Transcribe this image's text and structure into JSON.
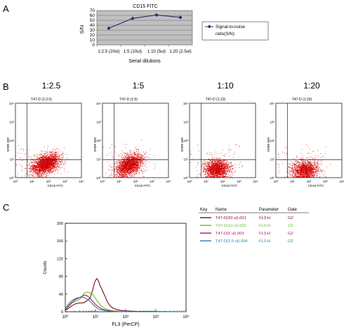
{
  "panels": {
    "a": "A",
    "b": "B",
    "c": "C"
  },
  "chart_data": [
    {
      "type": "line",
      "title": "CD15 FITC",
      "xlabel": "Serial dilutions",
      "ylabel": "S/N",
      "categories": [
        "1:2.5 (20ul)",
        "1:5 (10ul)",
        "1:10 (5ul)",
        "1:20 (2.5ul)"
      ],
      "series": [
        {
          "name": "Signal-to-noise ratio(S/N)",
          "values": [
            34,
            54,
            61,
            56
          ],
          "color": "#2b2b6b"
        }
      ],
      "ylim": [
        0,
        70
      ],
      "yticks": [
        0,
        10,
        20,
        30,
        40,
        50,
        60,
        70
      ],
      "grid": true,
      "legend": "right",
      "background": "#c0c0c0"
    },
    {
      "type": "scatter",
      "headers": [
        "1:2.5",
        "1:5",
        "1:10",
        "1:20"
      ],
      "plot_titles": [
        "T47-D (1:2.5)",
        "T47-D (1:5)",
        "T47-D (1:10)",
        "T47-D (1:20)"
      ],
      "xlabel": "CD15 FITC",
      "ylabel": "SFBR BIR",
      "log_ticks": [
        "10⁰",
        "10¹",
        "10²",
        "10³",
        "10⁴"
      ],
      "xlim": [
        1,
        10000
      ],
      "ylim": [
        1,
        10000
      ],
      "quadrant_gate": {
        "x": 5,
        "y": 9
      },
      "point_color": "#d40000",
      "populations": [
        {
          "cx": 1.8,
          "cy": 0.7,
          "sx": 0.42,
          "sy": 0.25,
          "n": 2400,
          "tilt": 0.25
        },
        {
          "cx": 1.6,
          "cy": 0.65,
          "sx": 0.4,
          "sy": 0.26,
          "n": 2200,
          "tilt": 0.3
        },
        {
          "cx": 1.65,
          "cy": 0.45,
          "sx": 0.37,
          "sy": 0.24,
          "n": 1800,
          "tilt": 0.05
        },
        {
          "cx": 1.75,
          "cy": 0.4,
          "sx": 0.4,
          "sy": 0.24,
          "n": 1600,
          "tilt": 0.05
        }
      ]
    },
    {
      "type": "line",
      "xlabel": "FL3 (PerCP)",
      "ylabel": "Counts",
      "xscale": "log",
      "xlim": [
        1,
        10000
      ],
      "ylim": [
        0,
        200
      ],
      "yticks": [
        0,
        40,
        80,
        120,
        160,
        200
      ],
      "xticks": [
        "10⁰",
        "10¹",
        "10²",
        "10³",
        "10⁴"
      ],
      "legend_table": {
        "headers": [
          "Key",
          "Name",
          "Parameter",
          "Gate"
        ],
        "rows": [
          {
            "name": "T47-D(20 ul).001",
            "parameter": "FL3-H",
            "gate": "G2",
            "color": "#7a0a1a"
          },
          {
            "name": "T47-D(10 ul).002",
            "parameter": "FL3-H",
            "gate": "G2",
            "color": "#6abf2a"
          },
          {
            "name": "T47-D(5 ul).003",
            "parameter": "FL3-H",
            "gate": "G2",
            "color": "#b01060"
          },
          {
            "name": "T47-D(2.5 ul).004",
            "parameter": "FL3-H",
            "gate": "G2",
            "color": "#2a7fa8"
          }
        ]
      },
      "series": [
        {
          "name": "T47-D(20 ul).001",
          "color": "#7a0a1a",
          "x": [
            1,
            1.3,
            1.7,
            2.2,
            3,
            4,
            5,
            6.5,
            8,
            9.5,
            11,
            12.5,
            14,
            16,
            18,
            21,
            25,
            30,
            38,
            50,
            70,
            100,
            200,
            10000
          ],
          "y": [
            3,
            8,
            14,
            18,
            20,
            20,
            24,
            30,
            48,
            68,
            75,
            70,
            60,
            52,
            44,
            34,
            22,
            14,
            8,
            5,
            3,
            2,
            1,
            0
          ]
        },
        {
          "name": "T47-D(10 ul).002",
          "color": "#6abf2a",
          "x": [
            1,
            1.3,
            1.7,
            2.2,
            3,
            3.6,
            4.2,
            5,
            6,
            7,
            8.5,
            10,
            12,
            15,
            20,
            28,
            40,
            60,
            100,
            10000
          ],
          "y": [
            4,
            12,
            20,
            24,
            28,
            34,
            42,
            44,
            44,
            42,
            38,
            30,
            22,
            14,
            8,
            4,
            2,
            1,
            0,
            0
          ]
        },
        {
          "name": "T47-D(5 ul).003",
          "color": "#b01060",
          "x": [
            1,
            1.3,
            1.7,
            2.2,
            3,
            3.8,
            4.5,
            5.3,
            6.3,
            7.5,
            9,
            11,
            14,
            18,
            25,
            40,
            70,
            10000
          ],
          "y": [
            4,
            14,
            22,
            28,
            32,
            36,
            38,
            36,
            32,
            26,
            20,
            14,
            9,
            5,
            3,
            1,
            0,
            0
          ]
        },
        {
          "name": "T47-D(2.5 ul).004",
          "color": "#2a7fa8",
          "x": [
            1,
            1.3,
            1.7,
            2.2,
            2.8,
            3.5,
            4.2,
            5,
            6,
            7.5,
            9,
            11,
            14,
            20,
            30,
            50,
            10000
          ],
          "y": [
            8,
            18,
            26,
            30,
            32,
            33,
            32,
            30,
            26,
            20,
            14,
            9,
            5,
            3,
            1,
            0,
            0
          ]
        }
      ]
    }
  ]
}
